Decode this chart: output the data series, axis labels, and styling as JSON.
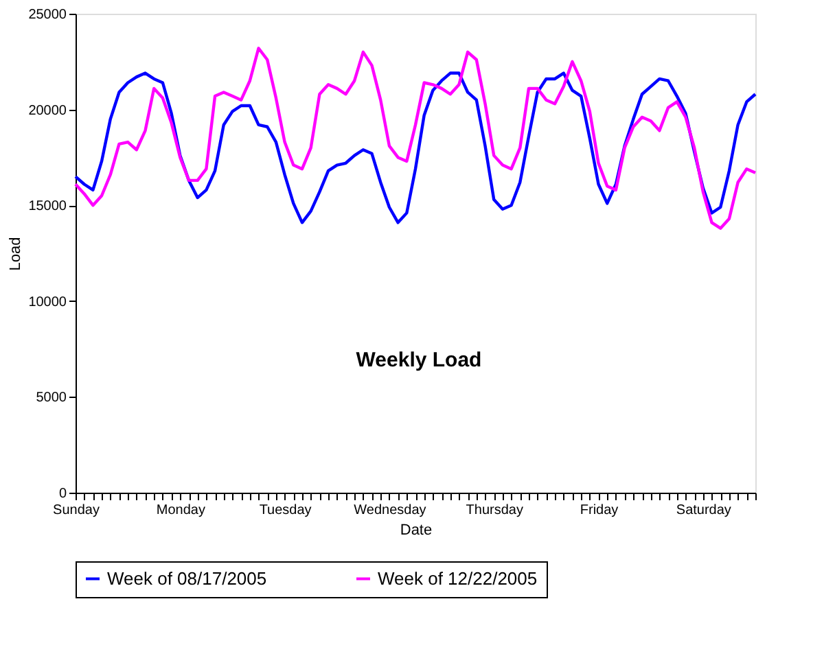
{
  "chart_data": {
    "type": "line",
    "title": "Weekly Load",
    "xlabel": "Date",
    "ylabel": "Load",
    "categories": [
      "Sunday",
      null,
      null,
      null,
      null,
      null,
      null,
      null,
      null,
      null,
      null,
      null,
      "Monday",
      null,
      null,
      null,
      null,
      null,
      null,
      null,
      null,
      null,
      null,
      null,
      "Tuesday",
      null,
      null,
      null,
      null,
      null,
      null,
      null,
      null,
      null,
      null,
      null,
      "Wednesday",
      null,
      null,
      null,
      null,
      null,
      null,
      null,
      null,
      null,
      null,
      null,
      "Thursday",
      null,
      null,
      null,
      null,
      null,
      null,
      null,
      null,
      null,
      null,
      null,
      "Friday",
      null,
      null,
      null,
      null,
      null,
      null,
      null,
      null,
      null,
      null,
      null,
      "Saturday",
      null,
      null,
      null,
      null,
      null,
      null
    ],
    "ylim": [
      0,
      25000
    ],
    "yticks": [
      0,
      5000,
      10000,
      15000,
      20000,
      25000
    ],
    "grid": false,
    "legend": "bottom",
    "marker": "none",
    "line_style": "solid",
    "series": [
      {
        "name": "Week of 08/17/2005",
        "color": "#0000ff",
        "values": [
          16500,
          16100,
          15800,
          17300,
          19500,
          20900,
          21400,
          21700,
          21900,
          21600,
          21400,
          19800,
          17600,
          16300,
          15400,
          15800,
          16800,
          19200,
          19900,
          20200,
          20200,
          19200,
          19100,
          18300,
          16600,
          15100,
          14100,
          14700,
          15700,
          16800,
          17100,
          17200,
          17600,
          17900,
          17700,
          16200,
          14900,
          14100,
          14600,
          16900,
          19700,
          21000,
          21500,
          21900,
          21900,
          20900,
          20500,
          18100,
          15300,
          14800,
          15000,
          16200,
          18600,
          20900,
          21600,
          21600,
          21900,
          21000,
          20700,
          18500,
          16100,
          15100,
          16100,
          18100,
          19500,
          20800,
          21200,
          21600,
          21500,
          20700,
          19800,
          17800,
          15900,
          14600,
          14900,
          16800,
          19200,
          20400,
          20800
        ]
      },
      {
        "name": "Week of 12/22/2005",
        "color": "#ff00ff",
        "values": [
          16100,
          15600,
          15000,
          15500,
          16600,
          18200,
          18300,
          17900,
          18900,
          21100,
          20600,
          19300,
          17500,
          16300,
          16300,
          16900,
          20700,
          20900,
          20700,
          20500,
          21500,
          23200,
          22600,
          20600,
          18300,
          17100,
          16900,
          18000,
          20800,
          21300,
          21100,
          20800,
          21500,
          23000,
          22300,
          20500,
          18100,
          17500,
          17300,
          19200,
          21400,
          21300,
          21100,
          20800,
          21300,
          23000,
          22600,
          20300,
          17600,
          17100,
          16900,
          18000,
          21100,
          21100,
          20500,
          20300,
          21200,
          22500,
          21500,
          19900,
          17200,
          16000,
          15800,
          18000,
          19100,
          19600,
          19400,
          18900,
          20100,
          20400,
          19600,
          18000,
          15700,
          14100,
          13800,
          14300,
          16200,
          16900,
          16700
        ]
      }
    ]
  }
}
